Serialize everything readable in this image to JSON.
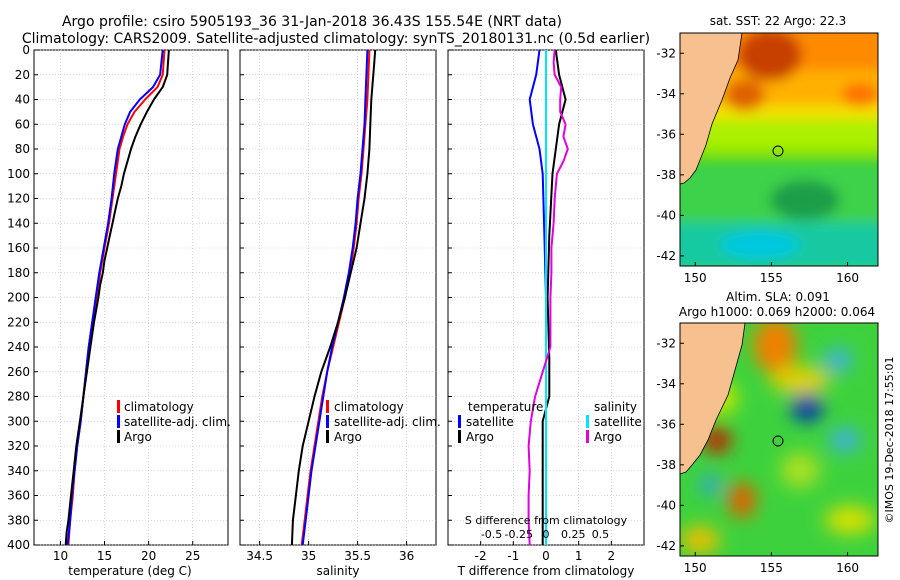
{
  "header": {
    "line1": "Argo profile: csiro 5905193_36 31-Jan-2018 36.43S 155.54E (NRT data)",
    "line2": "Climatology: CARS2009. Satellite-adjusted climatology: synTS_20180131.nc (0.5d earlier)"
  },
  "footer": {
    "stamp": "©IMOS 19-Dec-2018 17:55:01"
  },
  "colors": {
    "climatology": "#ff0000",
    "satellite": "#0000ff",
    "argo": "#000000",
    "sat_salinity": "#00e5ff",
    "argo_salinity": "#e000e0",
    "land": "#f7c08f",
    "coast": "#000000"
  },
  "chart_data": [
    {
      "type": "line",
      "title": "",
      "xlabel": "temperature (deg C)",
      "ylabel": "",
      "xlim": [
        7,
        29
      ],
      "ylim": [
        400,
        0
      ],
      "xticks": [
        10,
        15,
        20,
        25
      ],
      "yticks": [
        0,
        20,
        40,
        60,
        80,
        100,
        120,
        140,
        160,
        180,
        200,
        220,
        240,
        260,
        280,
        300,
        320,
        340,
        360,
        380,
        400
      ],
      "legend": {
        "placement": "center-right",
        "entries": [
          "climatology",
          "satellite-adj. clim.",
          "Argo"
        ]
      },
      "series": [
        {
          "name": "climatology",
          "color": "#ff0000",
          "depth": [
            0,
            20,
            30,
            40,
            50,
            60,
            70,
            80,
            100,
            120,
            140,
            160,
            180,
            200,
            220,
            240,
            260,
            280,
            300,
            320,
            340,
            360,
            380,
            400
          ],
          "values": [
            21.8,
            21.6,
            21.0,
            19.6,
            18.4,
            17.6,
            17.1,
            16.7,
            16.3,
            15.9,
            15.5,
            15.0,
            14.5,
            14.1,
            13.6,
            13.2,
            12.9,
            12.6,
            12.3,
            11.9,
            11.6,
            11.4,
            11.1,
            10.9
          ]
        },
        {
          "name": "satellite-adj. clim.",
          "color": "#0000ff",
          "depth": [
            0,
            20,
            30,
            40,
            50,
            60,
            70,
            80,
            100,
            120,
            140,
            160,
            180,
            200,
            220,
            240,
            260,
            280,
            300,
            320,
            340,
            360,
            380,
            400
          ],
          "values": [
            21.6,
            21.3,
            20.5,
            19.0,
            17.9,
            17.3,
            16.9,
            16.5,
            16.1,
            15.8,
            15.4,
            14.9,
            14.4,
            14.0,
            13.6,
            13.2,
            12.9,
            12.6,
            12.3,
            11.9,
            11.6,
            11.3,
            11.1,
            10.8
          ]
        },
        {
          "name": "Argo",
          "color": "#000000",
          "depth": [
            0,
            10,
            20,
            30,
            40,
            50,
            60,
            70,
            80,
            90,
            100,
            110,
            120,
            130,
            140,
            150,
            160,
            170,
            180,
            190,
            200,
            220,
            240,
            260,
            280,
            300,
            320,
            340,
            360,
            380,
            390,
            400
          ],
          "values": [
            22.3,
            22.2,
            22.1,
            21.6,
            20.6,
            19.8,
            19.1,
            18.5,
            18.0,
            17.6,
            17.2,
            16.9,
            16.5,
            16.2,
            15.9,
            15.6,
            15.3,
            15.0,
            14.8,
            14.5,
            14.3,
            13.8,
            13.4,
            13.0,
            12.6,
            12.2,
            11.8,
            11.5,
            11.2,
            10.9,
            10.7,
            10.6
          ]
        }
      ]
    },
    {
      "type": "line",
      "title": "",
      "xlabel": "salinity",
      "ylabel": "",
      "xlim": [
        34.3,
        36.3
      ],
      "ylim": [
        400,
        0
      ],
      "xticks": [
        34.5,
        35,
        35.5,
        36
      ],
      "legend": {
        "placement": "bottom-right",
        "entries": [
          "climatology",
          "satellite-adj. clim.",
          "Argo"
        ]
      },
      "series": [
        {
          "name": "climatology",
          "color": "#ff0000",
          "depth": [
            0,
            20,
            40,
            60,
            80,
            100,
            120,
            140,
            160,
            180,
            200,
            220,
            240,
            260,
            280,
            300,
            320,
            340,
            360,
            380,
            400
          ],
          "values": [
            35.62,
            35.61,
            35.6,
            35.58,
            35.56,
            35.54,
            35.51,
            35.49,
            35.46,
            35.42,
            35.37,
            35.31,
            35.25,
            35.19,
            35.14,
            35.1,
            35.06,
            35.02,
            34.99,
            34.96,
            34.93
          ]
        },
        {
          "name": "satellite-adj. clim.",
          "color": "#0000ff",
          "depth": [
            0,
            20,
            40,
            60,
            80,
            100,
            120,
            140,
            160,
            180,
            200,
            220,
            240,
            260,
            280,
            300,
            320,
            340,
            360,
            380,
            400
          ],
          "values": [
            35.6,
            35.59,
            35.58,
            35.57,
            35.55,
            35.53,
            35.5,
            35.48,
            35.45,
            35.41,
            35.36,
            35.3,
            35.24,
            35.19,
            35.15,
            35.11,
            35.07,
            35.03,
            35.0,
            34.97,
            34.94
          ]
        },
        {
          "name": "Argo",
          "color": "#000000",
          "depth": [
            0,
            10,
            20,
            40,
            60,
            80,
            100,
            120,
            140,
            160,
            180,
            200,
            220,
            240,
            260,
            280,
            300,
            320,
            340,
            360,
            380,
            400
          ],
          "values": [
            35.68,
            35.67,
            35.66,
            35.64,
            35.63,
            35.62,
            35.6,
            35.57,
            35.53,
            35.49,
            35.43,
            35.37,
            35.3,
            35.22,
            35.13,
            35.06,
            35.0,
            34.94,
            34.9,
            34.87,
            34.84,
            34.83
          ]
        }
      ]
    },
    {
      "type": "line",
      "title": "",
      "xlabel": "T difference from climatology",
      "x2label": "S difference from climatology",
      "ylabel": "",
      "xlim": [
        -3,
        3
      ],
      "x2lim": [
        -0.9,
        0.9
      ],
      "ylim": [
        400,
        0
      ],
      "xticks": [
        -2,
        -1,
        0,
        1,
        2
      ],
      "x2ticks": [
        -0.5,
        -0.25,
        0,
        0.25,
        0.5
      ],
      "x2ticklabels": [
        "-0.5",
        "-0.25",
        "0",
        "0.25",
        "0.5"
      ],
      "legend": {
        "placement": "bottom",
        "group_left": "temperature",
        "group_right": "salinity",
        "entries": [
          "satellite",
          "Argo",
          "satellite",
          "Argo"
        ]
      },
      "series": [
        {
          "name": "temperature satellite",
          "axis": "T",
          "color": "#0000ff",
          "depth": [
            0,
            20,
            40,
            60,
            80,
            100,
            150,
            200,
            250,
            280,
            300,
            340,
            400
          ],
          "values": [
            -0.2,
            -0.3,
            -0.5,
            -0.4,
            -0.2,
            -0.1,
            -0.05,
            0.0,
            0.0,
            0.0,
            0.0,
            0.0,
            0.0
          ]
        },
        {
          "name": "temperature Argo",
          "axis": "T",
          "color": "#000000",
          "depth": [
            0,
            20,
            40,
            60,
            80,
            100,
            150,
            200,
            250,
            280,
            300,
            340,
            380,
            400
          ],
          "values": [
            0.3,
            0.4,
            0.6,
            0.4,
            0.3,
            0.2,
            0.1,
            0.05,
            0.1,
            0.1,
            -0.1,
            -0.1,
            -0.1,
            -0.1
          ]
        },
        {
          "name": "salinity satellite",
          "axis": "S",
          "color": "#00e5ff",
          "depth": [
            0,
            20,
            40,
            60,
            80,
            100,
            150,
            200,
            250,
            300,
            350,
            400
          ],
          "values": [
            0.0,
            0.0,
            0.0,
            0.0,
            0.0,
            0.0,
            0.0,
            0.0,
            0.0,
            0.0,
            0.0,
            0.0
          ]
        },
        {
          "name": "salinity Argo",
          "axis": "S",
          "color": "#e000e0",
          "depth": [
            0,
            10,
            20,
            30,
            40,
            50,
            60,
            70,
            80,
            90,
            100,
            120,
            140,
            160,
            180,
            200,
            240,
            280,
            300,
            320,
            340,
            360,
            380,
            400
          ],
          "values": [
            0.08,
            0.07,
            0.08,
            0.14,
            0.13,
            0.13,
            0.18,
            0.16,
            0.2,
            0.16,
            0.1,
            0.08,
            0.07,
            0.05,
            0.05,
            0.04,
            0.04,
            -0.1,
            -0.14,
            -0.16,
            -0.15,
            -0.16,
            -0.16,
            -0.15
          ]
        }
      ]
    },
    {
      "type": "heatmap",
      "title": "sat. SST: 22 Argo: 22.3",
      "xlim": [
        149,
        162
      ],
      "ylim": [
        -42.5,
        -31
      ],
      "xticks": [
        150,
        155,
        160
      ],
      "yticks": [
        -32,
        -34,
        -36,
        -38,
        -40,
        -42
      ],
      "float_position": {
        "lon": 155.54,
        "lat": -36.43
      }
    },
    {
      "type": "heatmap",
      "title": "Altim. SLA: 0.091",
      "subtitle": "Argo h1000: 0.069 h2000: 0.064",
      "xlim": [
        149,
        162
      ],
      "ylim": [
        -42.5,
        -31
      ],
      "xticks": [
        150,
        155,
        160
      ],
      "yticks": [
        -32,
        -34,
        -36,
        -38,
        -40,
        -42
      ],
      "float_position": {
        "lon": 155.54,
        "lat": -36.43
      }
    }
  ]
}
